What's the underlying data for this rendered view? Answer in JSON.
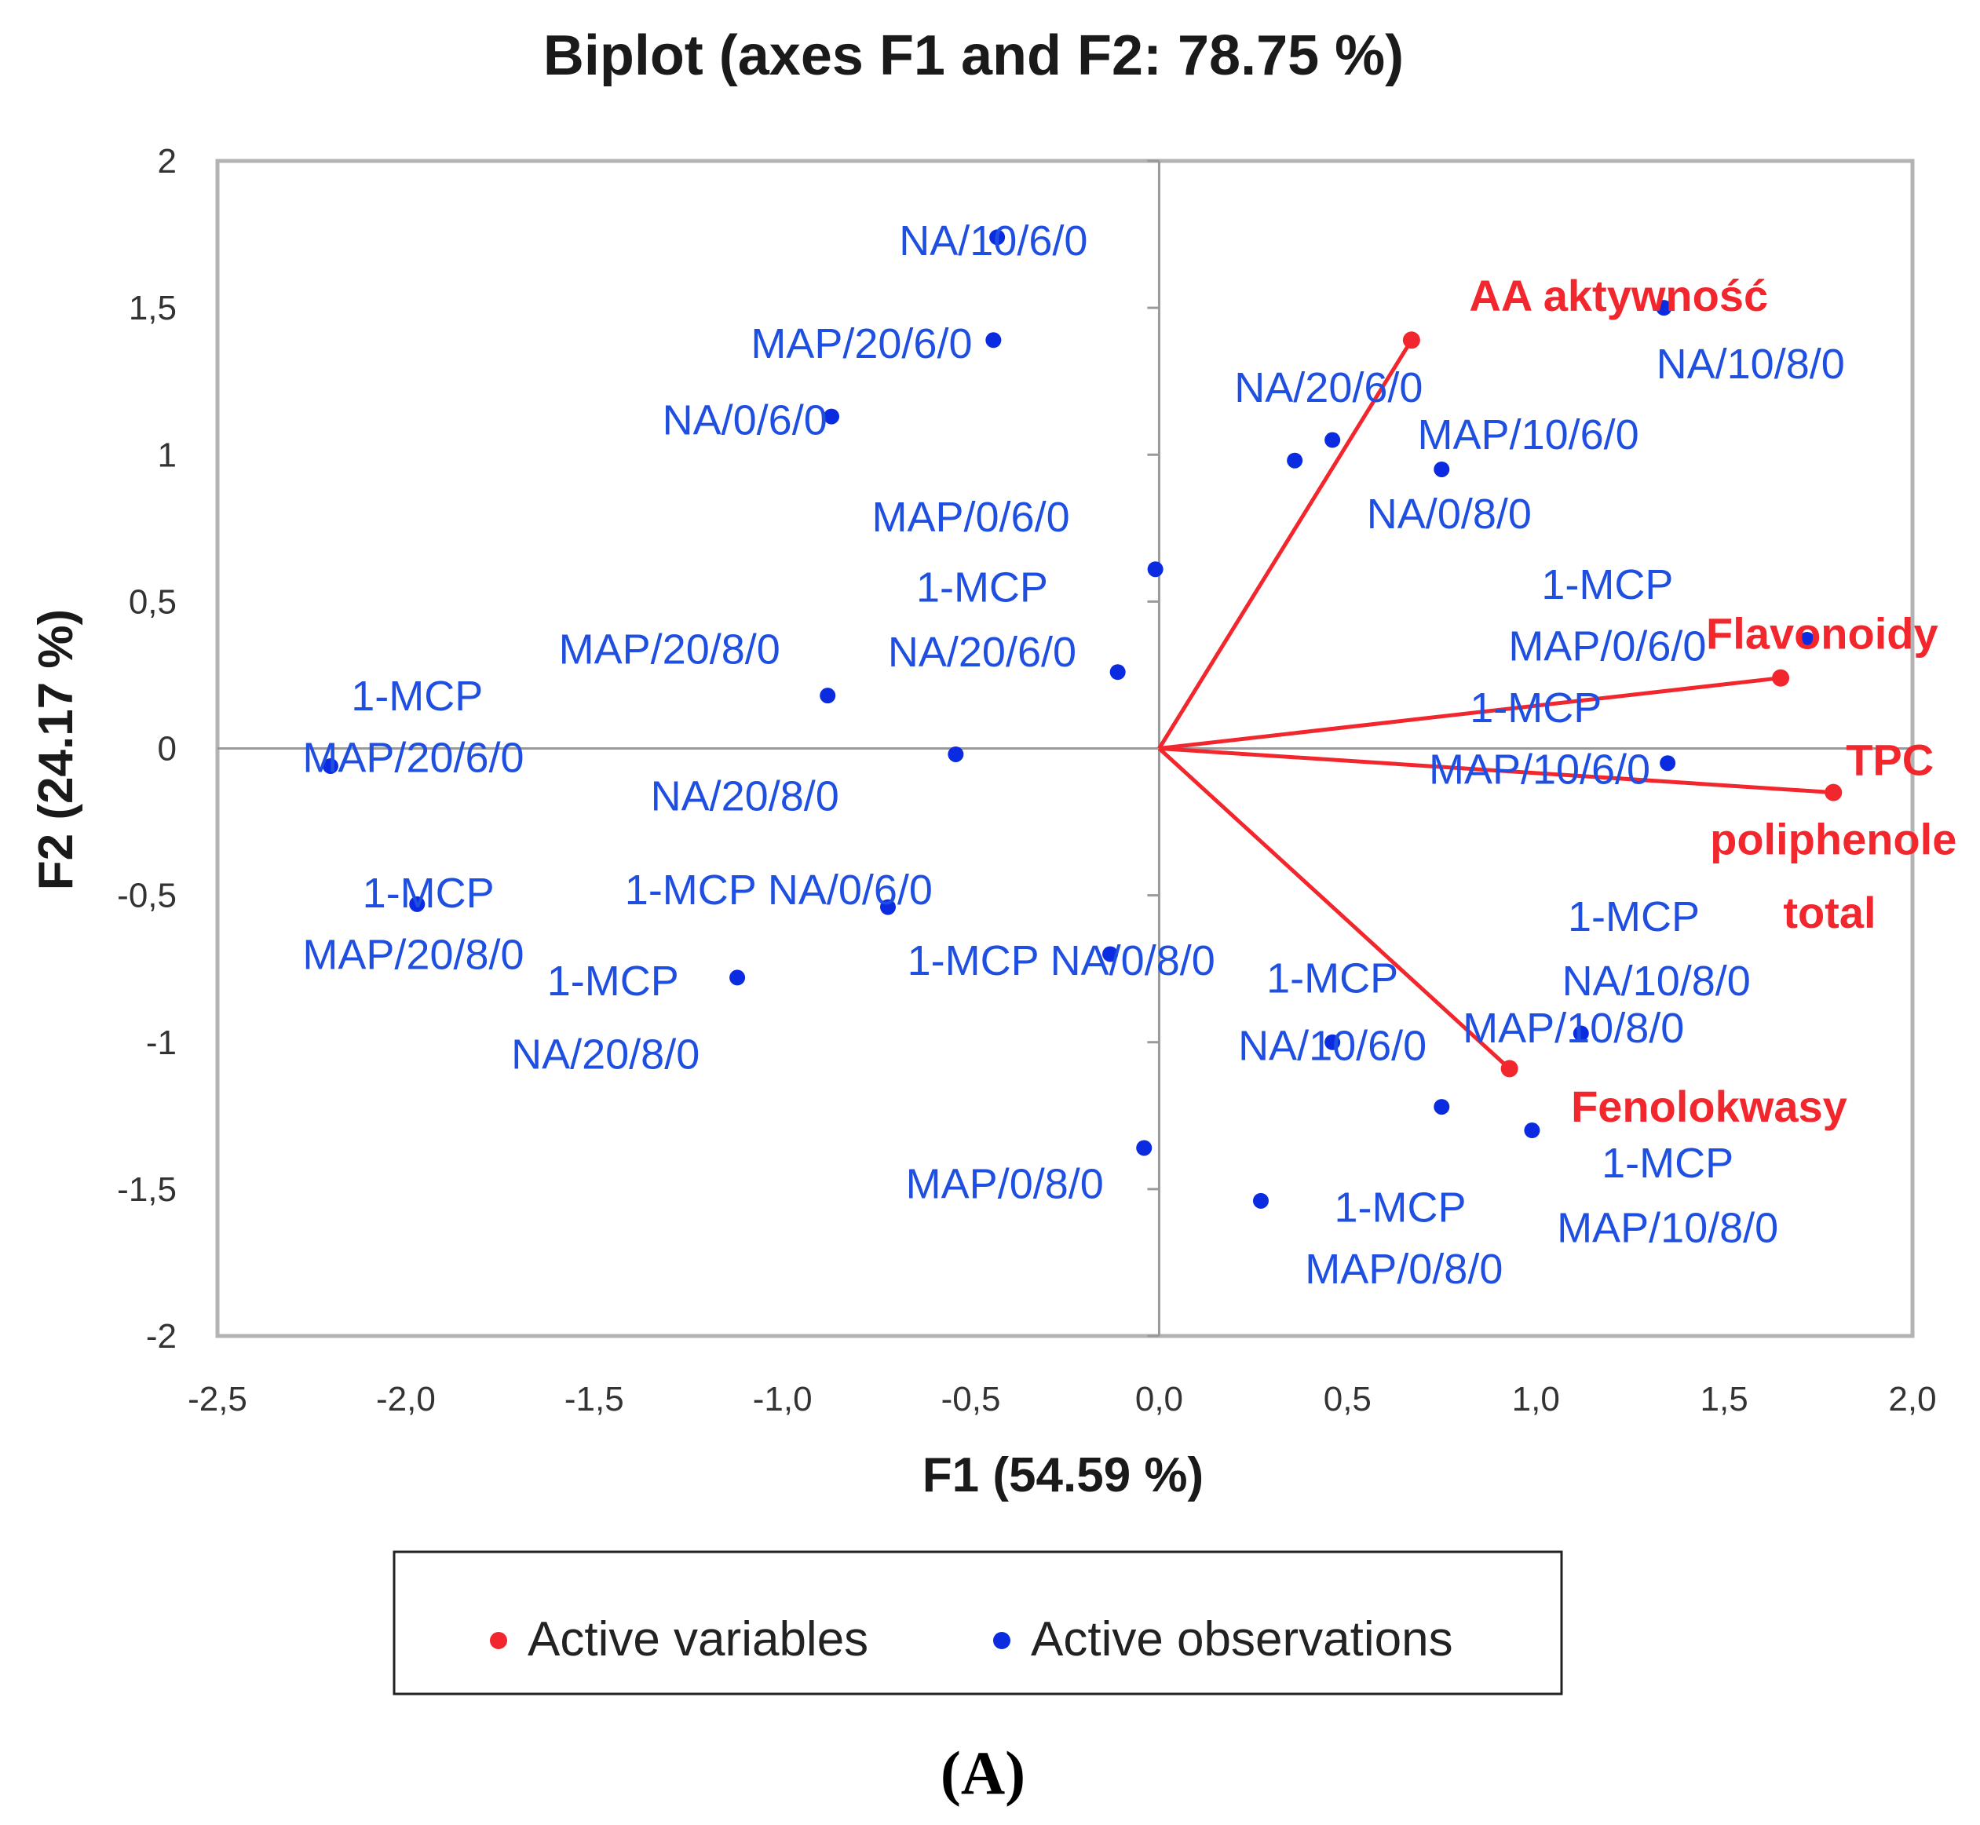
{
  "colors": {
    "variables": "#f2262d",
    "observations": "#0a2be0",
    "observation_text": "#1f4fe0"
  },
  "caption": "(A)",
  "chart_data": {
    "type": "scatter",
    "title": "Biplot (axes F1 and F2: 78.75 %)",
    "xlabel": "F1 (54.59 %)",
    "ylabel": "F2 (24.17 %)",
    "xlim": [
      -2.5,
      2.0
    ],
    "ylim": [
      -2.0,
      2.0
    ],
    "x_ticks": [
      "-2,5",
      "-2,0",
      "-1,5",
      "-1,0",
      "-0,5",
      "0,0",
      "0,5",
      "1,0",
      "1,5",
      "2,0"
    ],
    "y_ticks": [
      "2",
      "1,5",
      "1",
      "0,5",
      "0",
      "-0,5",
      "-1",
      "-1,5",
      "-2"
    ],
    "legend": [
      "Active variables",
      "Active observations"
    ],
    "legend_position": "bottom",
    "variables": [
      {
        "name": "AA aktywność",
        "x": 0.67,
        "y": 1.39
      },
      {
        "name": "Flavonoidy",
        "x": 1.65,
        "y": 0.24
      },
      {
        "name": "TPC poliphenole total",
        "x": 1.79,
        "y": -0.15
      },
      {
        "name": "Fenolokwasy",
        "x": 0.93,
        "y": -1.09
      }
    ],
    "variable_labels": [
      {
        "text": "AA aktywność",
        "x": 1.22,
        "y": 1.54
      },
      {
        "text": "Flavonoidy",
        "x": 1.76,
        "y": 0.39
      },
      {
        "text": "TPC",
        "x": 1.94,
        "y": -0.04
      },
      {
        "text": "poliphenole",
        "x": 1.79,
        "y": -0.31
      },
      {
        "text": "total",
        "x": 1.78,
        "y": -0.56
      },
      {
        "text": "Fenolokwasy",
        "x": 1.46,
        "y": -1.22
      }
    ],
    "observations": [
      {
        "x": -0.43,
        "y": 1.74
      },
      {
        "x": -0.44,
        "y": 1.39
      },
      {
        "x": -0.87,
        "y": 1.13
      },
      {
        "x": -0.01,
        "y": 0.61
      },
      {
        "x": -0.11,
        "y": 0.26
      },
      {
        "x": -0.88,
        "y": 0.18
      },
      {
        "x": -0.54,
        "y": -0.02
      },
      {
        "x": -2.2,
        "y": -0.06
      },
      {
        "x": -1.97,
        "y": -0.53
      },
      {
        "x": -0.72,
        "y": -0.54
      },
      {
        "x": -1.12,
        "y": -0.78
      },
      {
        "x": -0.13,
        "y": -0.7
      },
      {
        "x": -0.04,
        "y": -1.36
      },
      {
        "x": 0.27,
        "y": -1.54
      },
      {
        "x": 0.46,
        "y": -1.0
      },
      {
        "x": 0.36,
        "y": 0.98
      },
      {
        "x": 0.46,
        "y": 1.05
      },
      {
        "x": 0.75,
        "y": 0.95
      },
      {
        "x": 1.34,
        "y": 1.5
      },
      {
        "x": 1.72,
        "y": 0.37
      },
      {
        "x": 1.35,
        "y": -0.05
      },
      {
        "x": 1.12,
        "y": -0.97
      },
      {
        "x": 0.75,
        "y": -1.22
      },
      {
        "x": 0.99,
        "y": -1.3
      }
    ],
    "observation_labels": [
      {
        "text": "NA/10/6/0",
        "x": -0.44,
        "y": 1.73
      },
      {
        "text": "MAP/20/6/0",
        "x": -0.79,
        "y": 1.38
      },
      {
        "text": "NA/0/6/0",
        "x": -1.1,
        "y": 1.12
      },
      {
        "text": "NA/20/6/0",
        "x": 0.45,
        "y": 1.23
      },
      {
        "text": "MAP/10/6/0",
        "x": 0.98,
        "y": 1.07
      },
      {
        "text": "NA/0/8/0",
        "x": 0.77,
        "y": 0.8
      },
      {
        "text": "MAP/0/6/0",
        "x": -0.5,
        "y": 0.79
      },
      {
        "text": "1-MCP",
        "x": -0.47,
        "y": 0.55
      },
      {
        "text": "MAP/20/8/0",
        "x": -1.3,
        "y": 0.34
      },
      {
        "text": "NA/20/6/0",
        "x": -0.47,
        "y": 0.33
      },
      {
        "text": "1-MCP",
        "x": -1.97,
        "y": 0.18
      },
      {
        "text": "MAP/20/6/0",
        "x": -1.98,
        "y": -0.03
      },
      {
        "text": "NA/20/8/0",
        "x": -1.1,
        "y": -0.16
      },
      {
        "text": "1-MCP",
        "x": -1.94,
        "y": -0.49
      },
      {
        "text": "MAP/20/8/0",
        "x": -1.98,
        "y": -0.7
      },
      {
        "text": "1-MCP NA/0/6/0",
        "x": -1.01,
        "y": -0.48
      },
      {
        "text": "1-MCP",
        "x": -1.45,
        "y": -0.79
      },
      {
        "text": "NA/20/8/0",
        "x": -1.47,
        "y": -1.04
      },
      {
        "text": "1-MCP NA/0/8/0",
        "x": -0.26,
        "y": -0.72
      },
      {
        "text": "1-MCP",
        "x": 0.46,
        "y": -0.78
      },
      {
        "text": "NA/10/6/0",
        "x": 0.46,
        "y": -1.01
      },
      {
        "text": "MAP/0/8/0",
        "x": -0.41,
        "y": -1.48
      },
      {
        "text": "1-MCP",
        "x": 0.64,
        "y": -1.56
      },
      {
        "text": "MAP/0/8/0",
        "x": 0.65,
        "y": -1.77
      },
      {
        "text": "1-MCP",
        "x": 1.19,
        "y": 0.56
      },
      {
        "text": "MAP/0/6/0",
        "x": 1.19,
        "y": 0.35
      },
      {
        "text": "1-MCP",
        "x": 1.0,
        "y": 0.14
      },
      {
        "text": "MAP/10/6/0",
        "x": 1.01,
        "y": -0.07
      },
      {
        "text": "1-MCP",
        "x": 1.26,
        "y": -0.57
      },
      {
        "text": "NA/10/8/0",
        "x": 1.32,
        "y": -0.79
      },
      {
        "text": "MAP/10/8/0",
        "x": 1.1,
        "y": -0.95
      },
      {
        "text": "1-MCP",
        "x": 1.35,
        "y": -1.41
      },
      {
        "text": "MAP/10/8/0",
        "x": 1.35,
        "y": -1.63
      },
      {
        "text": "NA/10/8/0",
        "x": 1.57,
        "y": 1.31
      }
    ]
  }
}
